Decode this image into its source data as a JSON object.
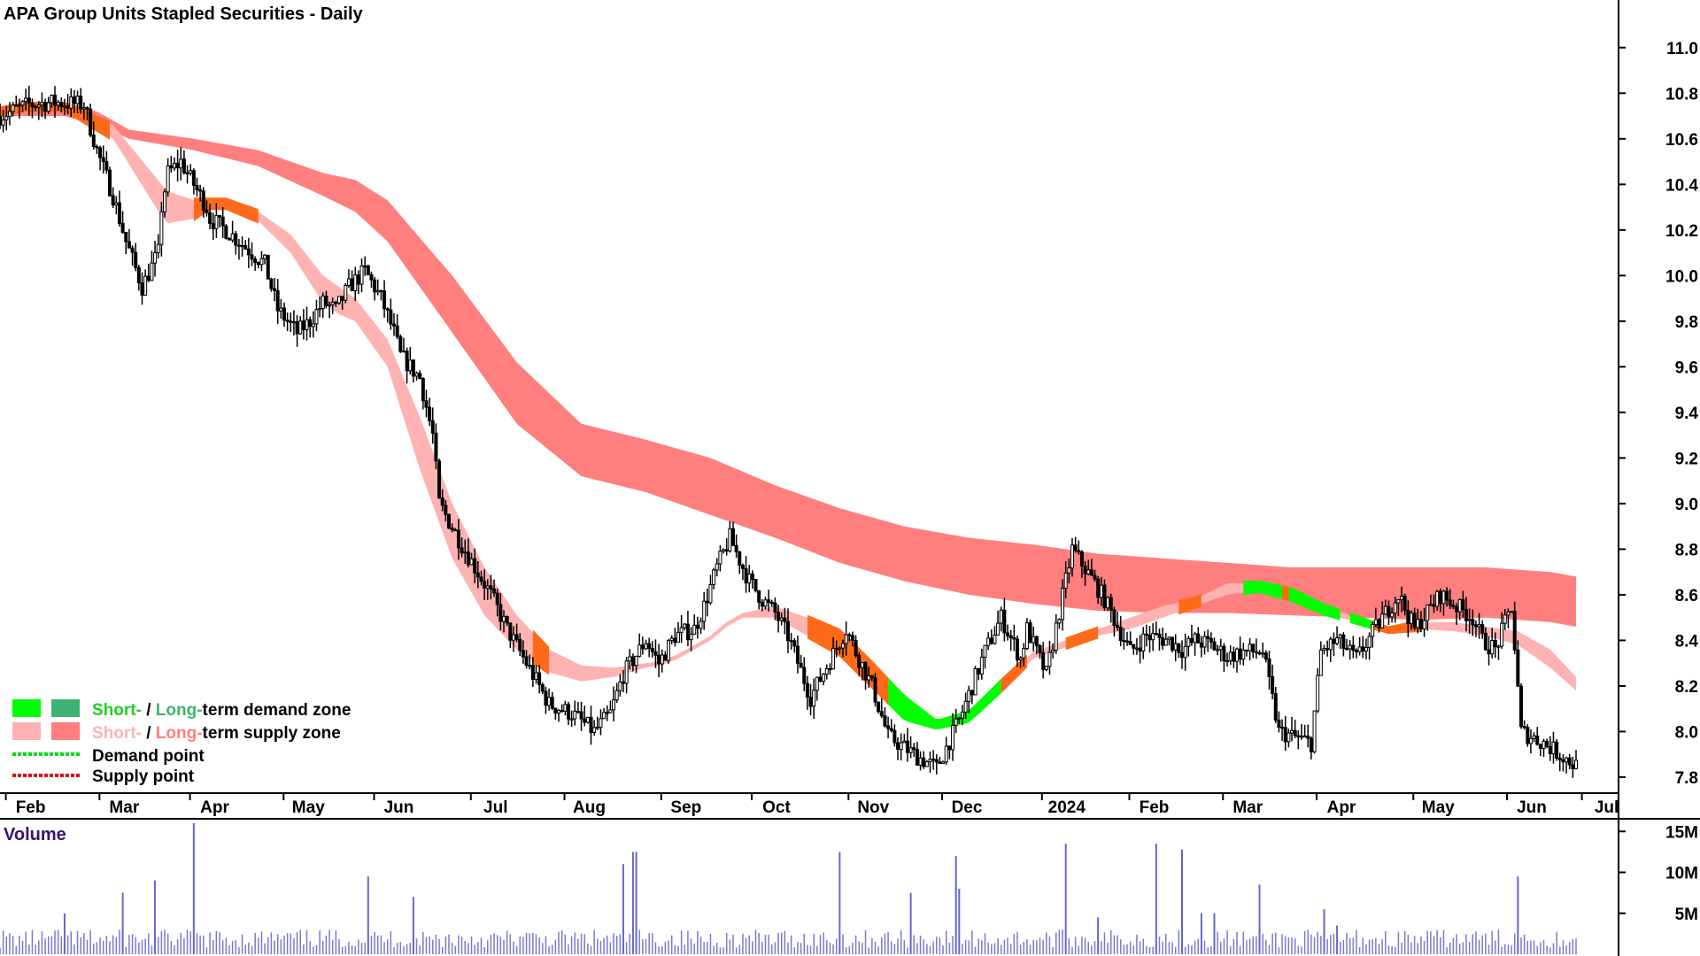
{
  "chart_data": [
    {
      "type": "candlestick",
      "title": "APA Group Units Stapled Securities - Daily",
      "x_ticks": [
        "Feb",
        "Mar",
        "Apr",
        "May",
        "Jun",
        "Jul",
        "Aug",
        "Sep",
        "Oct",
        "Nov",
        "Dec",
        "2024",
        "Feb",
        "Mar",
        "Apr",
        "May",
        "Jun",
        "Jul"
      ],
      "y_ticks": [
        "11.0",
        "10.8",
        "10.6",
        "10.4",
        "10.2",
        "10.0",
        "9.8",
        "9.6",
        "9.4",
        "9.2",
        "9.0",
        "8.8",
        "8.6",
        "8.4",
        "8.2",
        "8.0",
        "7.8"
      ],
      "ylim": [
        7.73,
        11.17
      ],
      "price_path_x": [
        0,
        9,
        17,
        26,
        30,
        35,
        39,
        44,
        49,
        50,
        52,
        56,
        60,
        64,
        65,
        70,
        78,
        82,
        86,
        92,
        96,
        100,
        104,
        108,
        113,
        118,
        122,
        124,
        130,
        134,
        136,
        143,
        152,
        157,
        163,
        170,
        177,
        184,
        189,
        193,
        200,
        204,
        209,
        215,
        218,
        222,
        226,
        230,
        232,
        236,
        240,
        244,
        251,
        262,
        265,
        270,
        275,
        283,
        290,
        297,
        305,
        310,
        316,
        318,
        324,
        332,
        339,
        342,
        350,
        355,
        362,
        366,
        370,
        375,
        380,
        385,
        391,
        396,
        406,
        409,
        414,
        420,
        428,
        433,
        438,
        446,
        456,
        459,
        463,
        468,
        471,
        478,
        488
      ],
      "price_path_y": [
        10.7,
        10.75,
        10.76,
        10.75,
        10.55,
        10.35,
        10.15,
        9.95,
        10.1,
        10.3,
        10.45,
        10.5,
        10.4,
        10.3,
        10.25,
        10.2,
        10.1,
        10.05,
        9.85,
        9.75,
        9.8,
        9.88,
        9.85,
        9.95,
        10.02,
        9.9,
        9.75,
        9.65,
        9.55,
        9.3,
        9.0,
        8.82,
        8.6,
        8.45,
        8.3,
        8.12,
        8.08,
        8.0,
        8.08,
        8.25,
        8.4,
        8.3,
        8.42,
        8.45,
        8.55,
        8.72,
        8.85,
        8.72,
        8.66,
        8.58,
        8.52,
        8.42,
        8.15,
        8.45,
        8.35,
        8.2,
        7.98,
        7.9,
        7.84,
        8.05,
        8.35,
        8.5,
        8.32,
        8.45,
        8.25,
        8.8,
        8.65,
        8.58,
        8.35,
        8.42,
        8.4,
        8.36,
        8.4,
        8.38,
        8.33,
        8.35,
        8.35,
        8.0,
        7.95,
        8.35,
        8.4,
        8.32,
        8.5,
        8.6,
        8.45,
        8.6,
        8.5,
        8.4,
        8.36,
        8.55,
        8.0,
        7.95,
        7.85
      ],
      "bands": [
        {
          "name": "Short-term supply zone",
          "color": "#FFB2B2",
          "x": [
            0,
            8,
            15,
            20,
            35,
            50,
            52,
            60,
            65,
            70,
            80,
            90,
            100,
            105,
            110,
            120,
            130,
            140,
            150,
            160,
            170,
            180,
            190,
            200,
            205,
            210,
            220,
            225,
            230,
            240,
            250,
            260,
            270,
            280,
            290,
            300,
            310,
            320,
            330,
            340,
            350,
            360,
            370,
            380,
            390,
            400,
            410,
            420,
            430,
            440,
            450,
            460,
            470,
            480,
            488
          ],
          "upper": [
            10.73,
            10.75,
            10.75,
            10.75,
            10.66,
            10.4,
            10.37,
            10.33,
            10.33,
            10.33,
            10.28,
            10.18,
            10.0,
            9.95,
            9.9,
            9.72,
            9.38,
            9.0,
            8.72,
            8.51,
            8.36,
            8.29,
            8.28,
            8.3,
            8.31,
            8.34,
            8.42,
            8.48,
            8.52,
            8.55,
            8.5,
            8.44,
            8.3,
            8.15,
            8.04,
            8.08,
            8.22,
            8.35,
            8.4,
            8.45,
            8.5,
            8.55,
            8.58,
            8.65,
            8.65,
            8.62,
            8.55,
            8.5,
            8.45,
            8.48,
            8.48,
            8.46,
            8.44,
            8.36,
            8.24
          ],
          "lower": [
            10.71,
            10.73,
            10.73,
            10.73,
            10.6,
            10.26,
            10.23,
            10.25,
            10.3,
            10.3,
            10.24,
            10.1,
            9.88,
            9.83,
            9.8,
            9.6,
            9.15,
            8.76,
            8.51,
            8.36,
            8.26,
            8.22,
            8.24,
            8.28,
            8.29,
            8.32,
            8.4,
            8.46,
            8.5,
            8.5,
            8.42,
            8.34,
            8.2,
            8.06,
            8.02,
            8.05,
            8.18,
            8.32,
            8.37,
            8.42,
            8.45,
            8.5,
            8.55,
            8.6,
            8.62,
            8.58,
            8.52,
            8.48,
            8.44,
            8.45,
            8.44,
            8.42,
            8.38,
            8.28,
            8.18
          ]
        },
        {
          "name": "Long-term supply zone",
          "color": "#FF7F7F",
          "x": [
            0,
            20,
            30,
            40,
            60,
            80,
            100,
            110,
            120,
            140,
            160,
            180,
            200,
            220,
            240,
            260,
            280,
            300,
            320,
            340,
            360,
            380,
            400,
            420,
            440,
            460,
            480,
            488
          ],
          "upper": [
            10.73,
            10.76,
            10.72,
            10.64,
            10.6,
            10.55,
            10.45,
            10.42,
            10.33,
            10.0,
            9.62,
            9.35,
            9.28,
            9.2,
            9.08,
            8.98,
            8.9,
            8.85,
            8.82,
            8.78,
            8.76,
            8.74,
            8.72,
            8.72,
            8.72,
            8.72,
            8.7,
            8.68
          ],
          "lower": [
            10.7,
            10.7,
            10.66,
            10.6,
            10.55,
            10.48,
            10.35,
            10.28,
            10.15,
            9.75,
            9.35,
            9.12,
            9.05,
            8.95,
            8.85,
            8.74,
            8.66,
            8.6,
            8.56,
            8.53,
            8.52,
            8.52,
            8.51,
            8.5,
            8.49,
            8.5,
            8.48,
            8.46
          ]
        }
      ],
      "zone_overlays": [
        {
          "type": "Short-term demand zone",
          "color": "#00FF00",
          "x_ranges": [
            [
              275,
              310
            ],
            [
              385,
              415
            ],
            [
              418,
              440
            ]
          ]
        },
        {
          "type": "Long-term demand zone",
          "color": "#3CB371",
          "x_ranges": [
            [
              10,
              34
            ]
          ]
        },
        {
          "type": "zone crossover",
          "color": "#FF6A1A",
          "x_ranges": [
            [
              0,
              34
            ],
            [
              60,
              80
            ],
            [
              165,
              170
            ],
            [
              250,
              275
            ],
            [
              310,
              318
            ],
            [
              330,
              340
            ],
            [
              365,
              372
            ],
            [
              397,
              399
            ],
            [
              425,
              440
            ]
          ]
        }
      ],
      "volume": {
        "title": "Volume",
        "y_ticks": [
          "15M",
          "10M",
          "5M"
        ],
        "ylim": [
          0,
          16
        ],
        "spikes_x": [
          20,
          38,
          48,
          60,
          114,
          128,
          193,
          196,
          197,
          260,
          282,
          296,
          297,
          330,
          340,
          358,
          366,
          372,
          376,
          390,
          410,
          414,
          470
        ],
        "spikes_value": [
          5,
          7.5,
          9,
          16,
          9.5,
          7,
          11,
          12.5,
          12.5,
          12.5,
          7.5,
          12,
          8,
          13.5,
          4.5,
          13.5,
          12.8,
          5,
          5,
          8.5,
          5.5,
          3.5,
          9.5
        ]
      },
      "legend": [
        {
          "short_label": "Short-",
          "short_color": "#00FF00",
          "slash": " / ",
          "long_label": "Long-",
          "long_color": "#3CB371",
          "suffix": "term demand zone",
          "label_colors": [
            "#1FD01F",
            "#3CB371"
          ]
        },
        {
          "short_label": "Short-",
          "short_color": "#FFB2B2",
          "slash": " / ",
          "long_label": "Long-",
          "long_color": "#FF7F7F",
          "suffix": "term supply zone",
          "label_colors": [
            "#FFB2B2",
            "#FF7F7F"
          ]
        },
        {
          "label": "Demand point",
          "color": "#00E000"
        },
        {
          "label": "Supply point",
          "color": "#E00000"
        }
      ]
    }
  ]
}
